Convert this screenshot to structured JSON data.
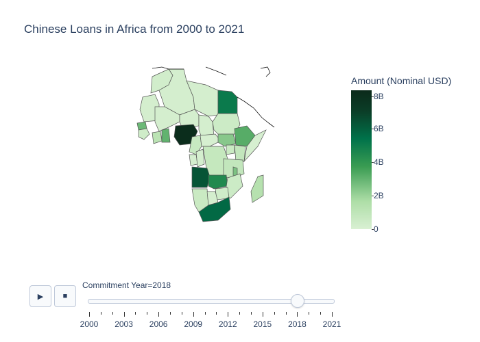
{
  "title": "Chinese Loans in Africa from 2000 to 2021",
  "colorbar": {
    "title": "Amount (Nominal USD)",
    "ticks": [
      "8B",
      "6B",
      "4B",
      "2B",
      "0"
    ],
    "tick_values": [
      8,
      6,
      4,
      2,
      0
    ]
  },
  "controls": {
    "play_icon": "▶",
    "stop_icon": "■"
  },
  "slider": {
    "label": "Commitment Year=2018",
    "current": 2018,
    "min": 2000,
    "max": 2021,
    "tick_labels": [
      "2000",
      "2003",
      "2006",
      "2009",
      "2012",
      "2015",
      "2018",
      "2021"
    ]
  },
  "chart_data": {
    "type": "choropleth",
    "title": "Chinese Loans in Africa from 2000 to 2021",
    "scope": "africa",
    "frame": "Commitment Year=2018",
    "colorscale": "Greens",
    "colorbar_title": "Amount (Nominal USD)",
    "zmin": 0,
    "zmax": 8.5,
    "units": "billion USD",
    "values": {
      "Nigeria": 8.3,
      "Angola": 6.5,
      "South Africa": 5.8,
      "Egypt": 5.2,
      "Zambia": 4.6,
      "Ethiopia": 3.3,
      "Ghana": 3.1,
      "Senegal": 2.9,
      "Malawi": 2.6,
      "South Sudan": 2.4,
      "Madagascar": 1.4,
      "Cote d'Ivoire": 1.2,
      "Tanzania": 0.9,
      "Kenya": 0.9,
      "DR Congo": 0.8,
      "Cameroon": 0.7,
      "Uganda": 0.6,
      "Namibia": 0.6,
      "Mozambique": 0.5,
      "Sudan": 0.5,
      "Guinea": 0.4,
      "Zimbabwe": 0.4,
      "Morocco": 0.3,
      "Algeria": 0.2,
      "Libya": 0.2,
      "Mali": 0.2,
      "Niger": 0.2,
      "Chad": 0.2,
      "Mauritania": 0.2,
      "Central African Republic": 0.1,
      "Gabon": 0.2,
      "Republic of Congo": 0.2,
      "Botswana": 0.2,
      "Somalia": 0.1
    }
  }
}
